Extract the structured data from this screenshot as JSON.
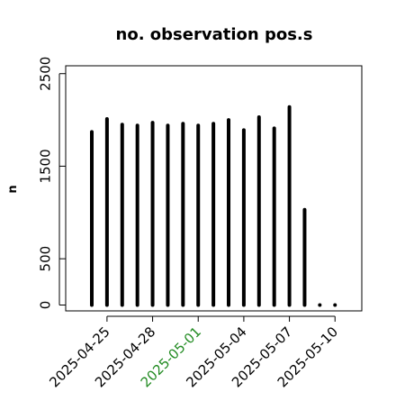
{
  "chart_data": {
    "type": "bar",
    "title": "no. observation pos.s",
    "xlabel": "",
    "ylabel": "n",
    "x": [
      "2025-04-24",
      "2025-04-25",
      "2025-04-26",
      "2025-04-27",
      "2025-04-28",
      "2025-04-29",
      "2025-04-30",
      "2025-05-01",
      "2025-05-02",
      "2025-05-03",
      "2025-05-04",
      "2025-05-05",
      "2025-05-06",
      "2025-05-07",
      "2025-05-08",
      "2025-05-09",
      "2025-05-10"
    ],
    "values": [
      1870,
      2010,
      1950,
      1940,
      1970,
      1940,
      1960,
      1940,
      1960,
      2000,
      1890,
      2030,
      1910,
      2140,
      1030,
      0,
      0
    ],
    "ylim": [
      0,
      2650
    ],
    "y_ticks": [
      0,
      500,
      1500,
      2500
    ],
    "x_tick_labels": [
      {
        "label": "2025-04-25",
        "date": "2025-04-25",
        "color": "#000000"
      },
      {
        "label": "2025-04-28",
        "date": "2025-04-28",
        "color": "#000000"
      },
      {
        "label": "2025-05-01",
        "date": "2025-05-01",
        "color": "#228B22"
      },
      {
        "label": "2025-05-04",
        "date": "2025-05-04",
        "color": "#000000"
      },
      {
        "label": "2025-05-07",
        "date": "2025-05-07",
        "color": "#000000"
      },
      {
        "label": "2025-05-10",
        "date": "2025-05-10",
        "color": "#000000"
      }
    ],
    "bar_color": "#000000",
    "grid": false,
    "legend": "none"
  }
}
